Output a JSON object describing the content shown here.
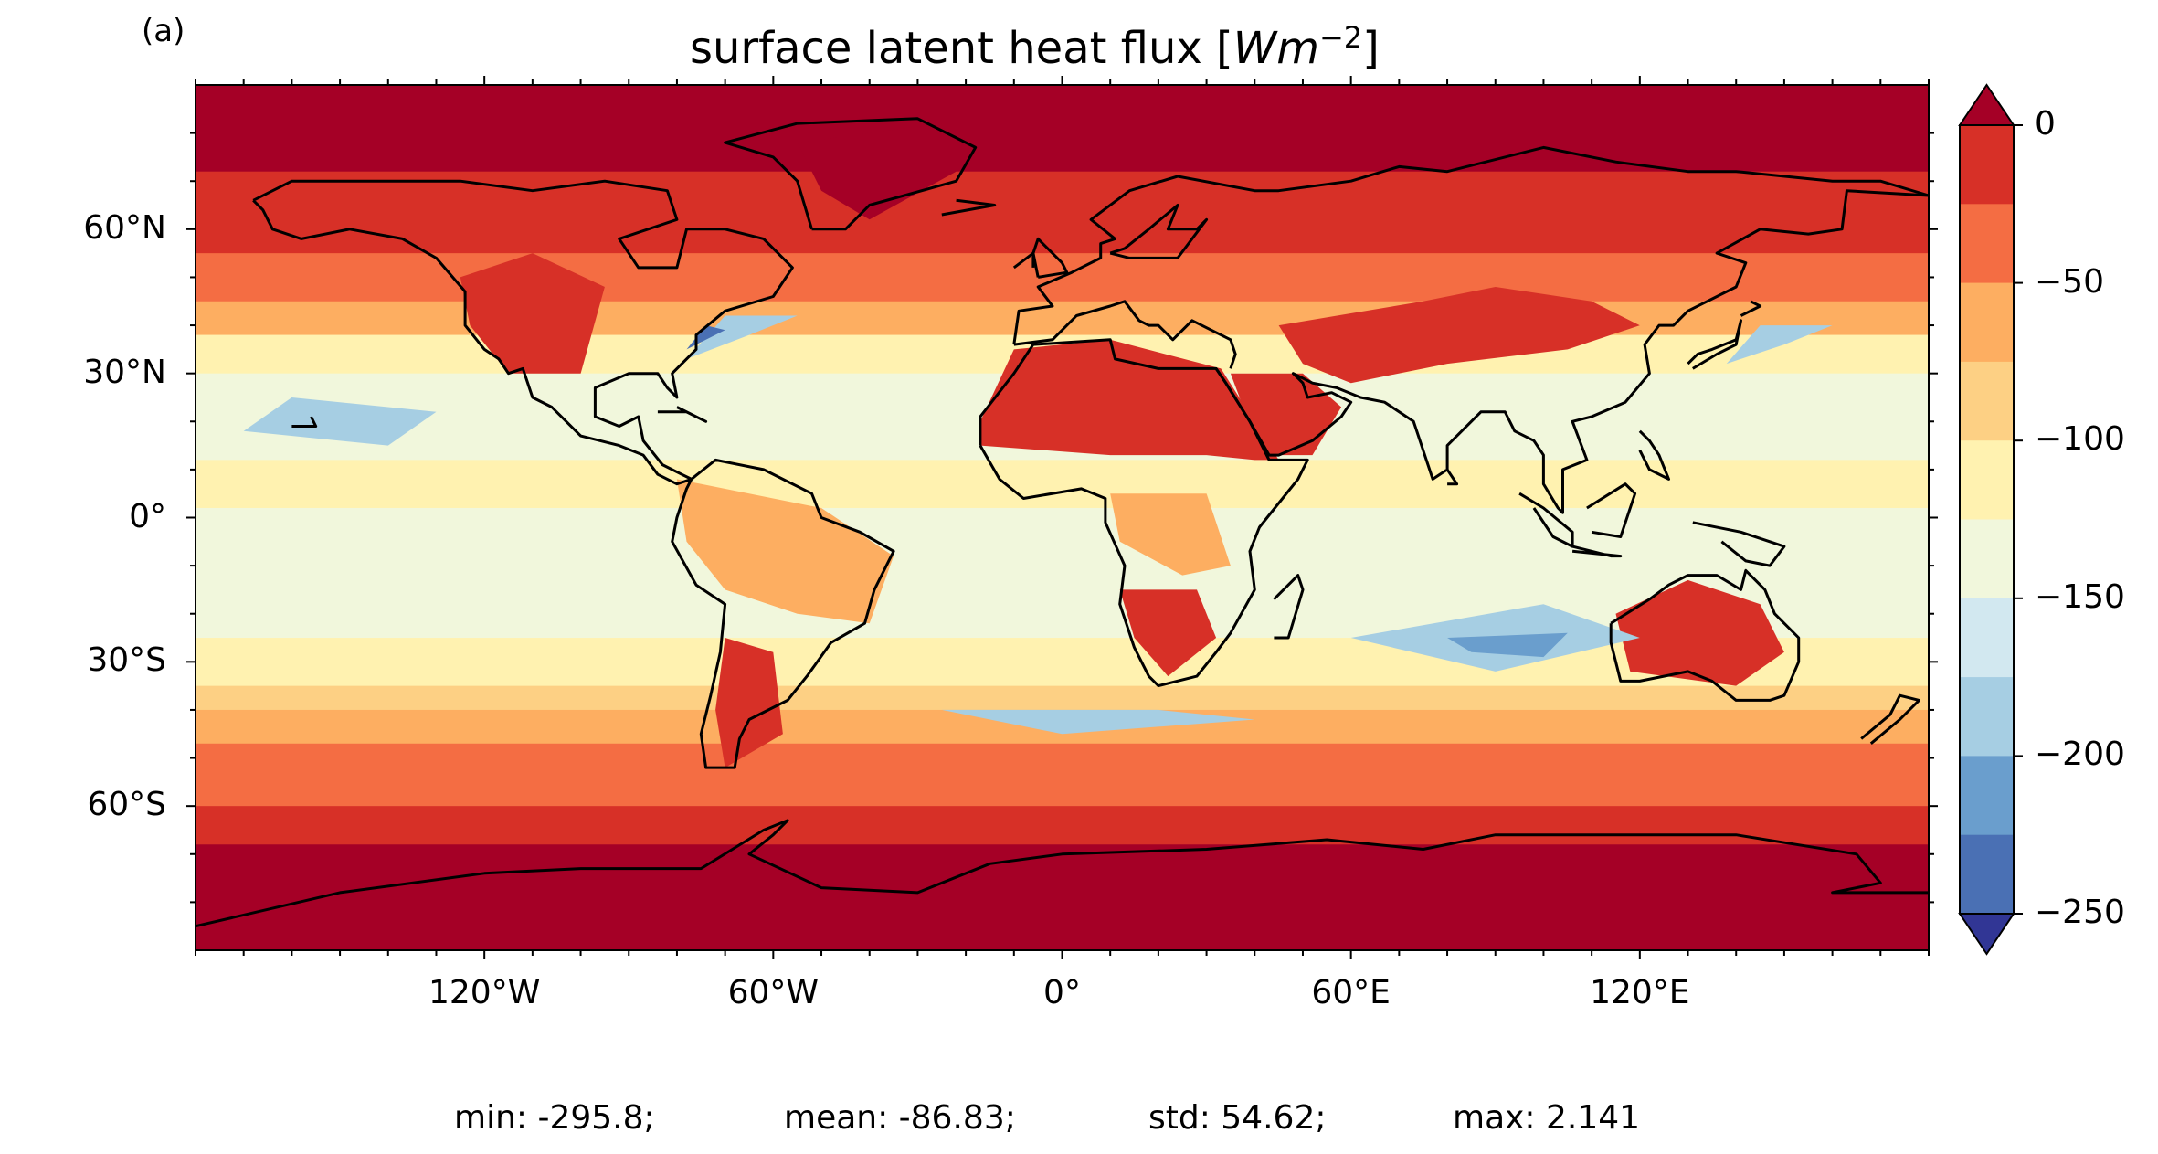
{
  "panel_label": "(a)",
  "title": {
    "prefix": "surface latent heat flux [",
    "unit_base": "Wm",
    "unit_exponent": "−2",
    "suffix": "]"
  },
  "map": {
    "projection": "PlateCarree",
    "lon_range": [
      -180,
      180
    ],
    "lat_range": [
      -90,
      90
    ],
    "lat_ticks": [
      {
        "value": 60,
        "label": "60°N"
      },
      {
        "value": 30,
        "label": "30°N"
      },
      {
        "value": 0,
        "label": "0°"
      },
      {
        "value": -30,
        "label": "30°S"
      },
      {
        "value": -60,
        "label": "60°S"
      }
    ],
    "lon_ticks": [
      {
        "value": -120,
        "label": "120°W"
      },
      {
        "value": -60,
        "label": "60°W"
      },
      {
        "value": 0,
        "label": "0°"
      },
      {
        "value": 60,
        "label": "60°E"
      },
      {
        "value": 120,
        "label": "120°E"
      }
    ],
    "coastlines": true,
    "field_description_bands": [
      {
        "lat_from": 90,
        "lat_to": 72,
        "level": 0
      },
      {
        "lat_from": 72,
        "lat_to": 55,
        "level": 1
      },
      {
        "lat_from": 55,
        "lat_to": 45,
        "level": 2
      },
      {
        "lat_from": 45,
        "lat_to": 38,
        "level": 3
      },
      {
        "lat_from": 38,
        "lat_to": 30,
        "level": 5
      },
      {
        "lat_from": 30,
        "lat_to": 12,
        "level": 6
      },
      {
        "lat_from": 12,
        "lat_to": 2,
        "level": 5
      },
      {
        "lat_from": 2,
        "lat_to": -5,
        "level": 6
      },
      {
        "lat_from": -5,
        "lat_to": -25,
        "level": 6
      },
      {
        "lat_from": -25,
        "lat_to": -35,
        "level": 5
      },
      {
        "lat_from": -35,
        "lat_to": -40,
        "level": 4
      },
      {
        "lat_from": -40,
        "lat_to": -47,
        "level": 3
      },
      {
        "lat_from": -47,
        "lat_to": -60,
        "level": 2
      },
      {
        "lat_from": -60,
        "lat_to": -68,
        "level": 1
      },
      {
        "lat_from": -68,
        "lat_to": -90,
        "level": 0
      }
    ]
  },
  "colorbar": {
    "extend": "both",
    "levels": [
      0,
      -25,
      -50,
      -75,
      -100,
      -125,
      -150,
      -175,
      -200,
      -225,
      -250
    ],
    "tick_labels": [
      {
        "value": 0,
        "label": "0"
      },
      {
        "value": -50,
        "label": "−50"
      },
      {
        "value": -100,
        "label": "−100"
      },
      {
        "value": -150,
        "label": "−150"
      },
      {
        "value": -200,
        "label": "−200"
      },
      {
        "value": -250,
        "label": "−250"
      }
    ],
    "colors": [
      "#a50026",
      "#d73027",
      "#f46d43",
      "#fdae61",
      "#fee090",
      "#ffffbf",
      "#e0f3f8",
      "#abd9e9",
      "#74add1",
      "#4575b4",
      "#313695"
    ],
    "colors_top_to_bottom": [
      "#a50026",
      "#d73027",
      "#f46d43",
      "#fdae61",
      "#fdd084",
      "#fff2b0",
      "#f1f7dc",
      "#d2e8f0",
      "#a6cee3",
      "#6a9ecd",
      "#4a70b4",
      "#313695"
    ]
  },
  "stats": {
    "min": "min: -295.8;",
    "mean": "mean: -86.83;",
    "std": "std: 54.62;",
    "max": "max: 2.141"
  }
}
